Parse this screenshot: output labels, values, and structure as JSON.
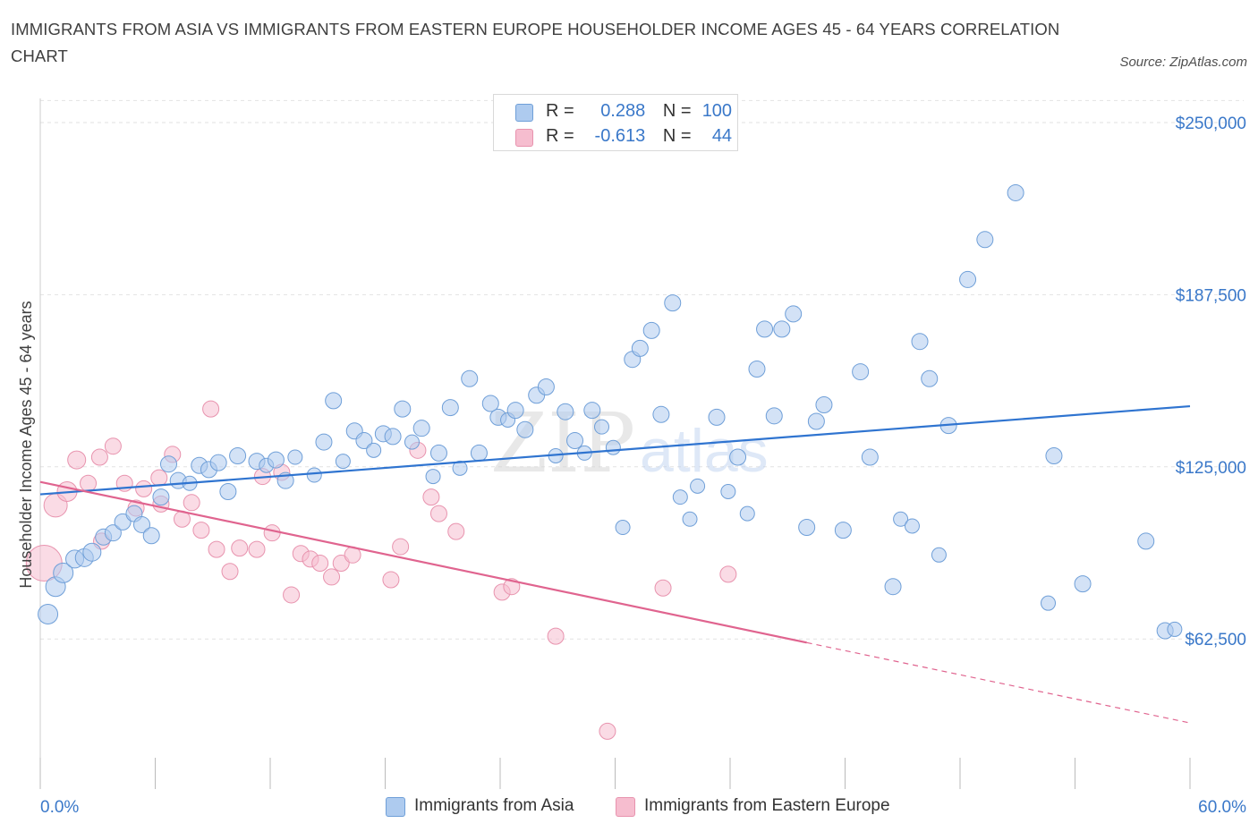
{
  "title": "IMMIGRANTS FROM ASIA VS IMMIGRANTS FROM EASTERN EUROPE HOUSEHOLDER INCOME AGES 45 - 64 YEARS CORRELATION CHART",
  "source": "Source: ZipAtlas.com",
  "legend": {
    "r_label": "R =",
    "n_label": "N =",
    "rows": [
      {
        "r": "0.288",
        "n": "100",
        "color": "#aecbef"
      },
      {
        "r": "-0.613",
        "n": "44",
        "color": "#f6bdcf"
      }
    ]
  },
  "bottom_legend": [
    {
      "label": "Immigrants from Asia",
      "color": "#aecbef"
    },
    {
      "label": "Immigrants from Eastern Europe",
      "color": "#f6bdcf"
    }
  ],
  "colors": {
    "asia_fill": "#aecbef",
    "asia_stroke": "#6f9fd8",
    "asia_line": "#2f74d0",
    "europe_fill": "#f6bdcf",
    "europe_stroke": "#e893ae",
    "europe_line": "#e0648f",
    "grid": "#e2e2e2",
    "axis_label": "#3a78c9"
  },
  "watermark": {
    "zip": "ZIP",
    "atlas": "atlas"
  },
  "chart_data": {
    "type": "scatter",
    "title": "IMMIGRANTS FROM ASIA VS IMMIGRANTS FROM EASTERN EUROPE HOUSEHOLDER INCOME AGES 45 - 64 YEARS CORRELATION CHART",
    "xlabel": "",
    "ylabel": "Householder Income Ages 45 - 64 years",
    "xlim": [
      0,
      60
    ],
    "ylim": [
      8000,
      262000
    ],
    "x_tick_labels": [
      "0.0%",
      "60.0%"
    ],
    "y_ticks": [
      62500,
      125000,
      187500,
      250000
    ],
    "y_tick_labels": [
      "$62,500",
      "$125,000",
      "$187,500",
      "$250,000"
    ],
    "grid": true,
    "series": [
      {
        "name": "Immigrants from Asia",
        "r": 0.288,
        "n": 100,
        "trend": {
          "x": [
            0,
            60
          ],
          "y": [
            115000,
            147000
          ],
          "dashed_from": null
        },
        "points": [
          [
            0.4,
            71500,
            11
          ],
          [
            0.8,
            81500,
            11
          ],
          [
            1.2,
            86500,
            11
          ],
          [
            1.8,
            91500,
            10
          ],
          [
            2.3,
            92000,
            10
          ],
          [
            2.7,
            94000,
            10
          ],
          [
            3.3,
            99500,
            9
          ],
          [
            3.8,
            101000,
            9
          ],
          [
            4.3,
            105000,
            9
          ],
          [
            4.9,
            108000,
            9
          ],
          [
            5.3,
            104000,
            9
          ],
          [
            5.8,
            100000,
            9
          ],
          [
            6.3,
            114000,
            9
          ],
          [
            6.7,
            126000,
            9
          ],
          [
            7.2,
            120000,
            9
          ],
          [
            7.8,
            119000,
            8
          ],
          [
            8.3,
            125500,
            9
          ],
          [
            8.8,
            124000,
            9
          ],
          [
            9.3,
            126500,
            9
          ],
          [
            9.8,
            116000,
            9
          ],
          [
            10.3,
            129000,
            9
          ],
          [
            11.3,
            127000,
            9
          ],
          [
            11.8,
            125500,
            8
          ],
          [
            12.3,
            127500,
            9
          ],
          [
            12.8,
            120000,
            9
          ],
          [
            13.3,
            128500,
            8
          ],
          [
            14.3,
            122000,
            8
          ],
          [
            14.8,
            134000,
            9
          ],
          [
            15.3,
            149000,
            9
          ],
          [
            15.8,
            127000,
            8
          ],
          [
            16.4,
            138000,
            9
          ],
          [
            16.9,
            134500,
            9
          ],
          [
            17.4,
            131000,
            8
          ],
          [
            17.9,
            137000,
            9
          ],
          [
            18.4,
            136000,
            9
          ],
          [
            18.9,
            146000,
            9
          ],
          [
            19.4,
            134000,
            8
          ],
          [
            19.9,
            139000,
            9
          ],
          [
            20.5,
            121500,
            8
          ],
          [
            20.8,
            130000,
            9
          ],
          [
            21.4,
            146500,
            9
          ],
          [
            21.9,
            124500,
            8
          ],
          [
            22.4,
            157000,
            9
          ],
          [
            22.9,
            130000,
            9
          ],
          [
            23.5,
            148000,
            9
          ],
          [
            23.9,
            143000,
            9
          ],
          [
            24.4,
            142000,
            8
          ],
          [
            24.8,
            145500,
            9
          ],
          [
            25.3,
            138500,
            9
          ],
          [
            25.9,
            151000,
            9
          ],
          [
            26.4,
            154000,
            9
          ],
          [
            26.9,
            129000,
            8
          ],
          [
            27.4,
            145000,
            9
          ],
          [
            27.9,
            134500,
            9
          ],
          [
            28.4,
            130000,
            8
          ],
          [
            28.8,
            145500,
            9
          ],
          [
            29.3,
            139500,
            8
          ],
          [
            29.9,
            132000,
            8
          ],
          [
            30.4,
            103000,
            8
          ],
          [
            30.9,
            164000,
            9
          ],
          [
            31.3,
            168000,
            9
          ],
          [
            31.9,
            174500,
            9
          ],
          [
            32.4,
            144000,
            9
          ],
          [
            33.0,
            184500,
            9
          ],
          [
            33.4,
            114000,
            8
          ],
          [
            33.9,
            106000,
            8
          ],
          [
            34.3,
            118000,
            8
          ],
          [
            35.3,
            143000,
            9
          ],
          [
            35.9,
            116000,
            8
          ],
          [
            36.4,
            128500,
            9
          ],
          [
            36.9,
            108000,
            8
          ],
          [
            37.4,
            160500,
            9
          ],
          [
            37.8,
            175000,
            9
          ],
          [
            38.3,
            143500,
            9
          ],
          [
            38.7,
            175000,
            9
          ],
          [
            39.3,
            180500,
            9
          ],
          [
            40.0,
            103000,
            9
          ],
          [
            40.5,
            141500,
            9
          ],
          [
            40.9,
            147500,
            9
          ],
          [
            41.9,
            102000,
            9
          ],
          [
            42.8,
            159500,
            9
          ],
          [
            43.3,
            128500,
            9
          ],
          [
            44.5,
            81500,
            9
          ],
          [
            44.9,
            106000,
            8
          ],
          [
            45.5,
            103500,
            8
          ],
          [
            45.9,
            170500,
            9
          ],
          [
            46.4,
            157000,
            9
          ],
          [
            46.9,
            93000,
            8
          ],
          [
            47.4,
            140000,
            9
          ],
          [
            48.4,
            193000,
            9
          ],
          [
            49.3,
            207500,
            9
          ],
          [
            50.9,
            224500,
            9
          ],
          [
            52.6,
            75500,
            8
          ],
          [
            52.9,
            129000,
            9
          ],
          [
            54.4,
            82500,
            9
          ],
          [
            57.7,
            98000,
            9
          ],
          [
            58.7,
            65500,
            9
          ],
          [
            59.2,
            66000,
            8
          ],
          [
            48.0,
            220000,
            0
          ],
          [
            12.0,
            150000,
            0
          ]
        ]
      },
      {
        "name": "Immigrants from Eastern Europe",
        "r": -0.613,
        "n": 44,
        "trend": {
          "x": [
            0,
            60
          ],
          "y": [
            119500,
            32000
          ],
          "dashed_from": 40
        },
        "points": [
          [
            0.2,
            90000,
            20
          ],
          [
            0.8,
            111000,
            13
          ],
          [
            1.4,
            116000,
            11
          ],
          [
            1.9,
            127500,
            10
          ],
          [
            2.5,
            119000,
            9
          ],
          [
            3.1,
            128500,
            9
          ],
          [
            3.2,
            98000,
            9
          ],
          [
            3.8,
            132500,
            9
          ],
          [
            4.4,
            119000,
            9
          ],
          [
            5.0,
            110000,
            9
          ],
          [
            5.4,
            117000,
            9
          ],
          [
            6.2,
            121000,
            9
          ],
          [
            6.3,
            111500,
            9
          ],
          [
            6.9,
            129500,
            9
          ],
          [
            7.4,
            106000,
            9
          ],
          [
            7.9,
            112000,
            9
          ],
          [
            8.4,
            102000,
            9
          ],
          [
            8.9,
            146000,
            9
          ],
          [
            9.2,
            95000,
            9
          ],
          [
            9.9,
            87000,
            9
          ],
          [
            10.4,
            95500,
            9
          ],
          [
            11.3,
            95000,
            9
          ],
          [
            11.6,
            121500,
            9
          ],
          [
            12.1,
            101000,
            9
          ],
          [
            12.6,
            123000,
            9
          ],
          [
            13.1,
            78500,
            9
          ],
          [
            13.6,
            93500,
            9
          ],
          [
            14.1,
            91500,
            9
          ],
          [
            14.6,
            90000,
            9
          ],
          [
            15.2,
            85000,
            9
          ],
          [
            15.7,
            90000,
            9
          ],
          [
            16.3,
            93000,
            9
          ],
          [
            18.3,
            84000,
            9
          ],
          [
            18.8,
            96000,
            9
          ],
          [
            19.7,
            131000,
            9
          ],
          [
            20.4,
            114000,
            9
          ],
          [
            20.8,
            108000,
            9
          ],
          [
            21.7,
            101500,
            9
          ],
          [
            24.1,
            79500,
            9
          ],
          [
            24.6,
            81500,
            9
          ],
          [
            26.9,
            63500,
            9
          ],
          [
            29.6,
            29000,
            9
          ],
          [
            32.5,
            81000,
            9
          ],
          [
            35.9,
            86000,
            9
          ]
        ]
      }
    ]
  }
}
